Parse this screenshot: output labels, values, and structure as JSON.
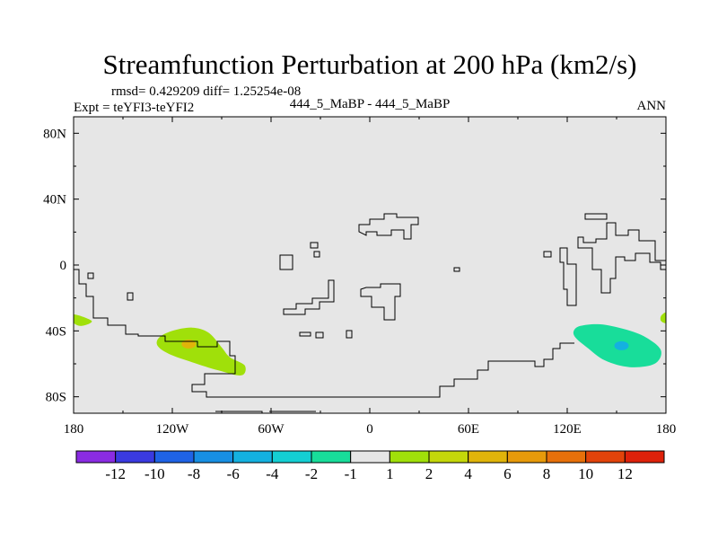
{
  "chart_data": {
    "type": "heatmap",
    "title": "Streamfunction Perturbation at 200 hPa (km2/s)",
    "stats_line": "rmsd= 0.429209 diff= 1.25254e-08",
    "expt_label": "Expt = teYFI3-teYFI2",
    "center_label": "444_5_MaBP - 444_5_MaBP",
    "season_label": "ANN",
    "xlim": [
      -180,
      180
    ],
    "ylim": [
      -90,
      90
    ],
    "x_ticks": [
      {
        "value": -180,
        "label": "180"
      },
      {
        "value": -120,
        "label": "120W"
      },
      {
        "value": -60,
        "label": "60W"
      },
      {
        "value": 0,
        "label": "0"
      },
      {
        "value": 60,
        "label": "60E"
      },
      {
        "value": 120,
        "label": "120E"
      },
      {
        "value": 180,
        "label": "180"
      }
    ],
    "y_ticks": [
      {
        "value": 80,
        "label": "80N"
      },
      {
        "value": 40,
        "label": "40N"
      },
      {
        "value": 0,
        "label": "0"
      },
      {
        "value": -40,
        "label": "40S"
      },
      {
        "value": -80,
        "label": "80S"
      }
    ],
    "colorbar": {
      "colors": [
        "#8a2be2",
        "#3a3ae0",
        "#1f63e6",
        "#178fe3",
        "#14b1e0",
        "#14cfd3",
        "#18dd9a",
        "#e6e6e6",
        "#a0e00a",
        "#c4d70a",
        "#e0b40a",
        "#e79a0a",
        "#e7700a",
        "#e2430a",
        "#de210a"
      ],
      "labels": [
        "-12",
        "-10",
        "-8",
        "-6",
        "-4",
        "-2",
        "-1",
        "1",
        "2",
        "4",
        "6",
        "8",
        "10",
        "12"
      ]
    },
    "features": [
      {
        "name": "positive anomaly south pacific",
        "value_range": [
          1,
          4
        ],
        "color": "#a0e00a",
        "outline": [
          [
            -128,
            -44
          ],
          [
            -120,
            -40
          ],
          [
            -108,
            -38
          ],
          [
            -98,
            -41
          ],
          [
            -90,
            -50
          ],
          [
            -85,
            -56
          ],
          [
            -76,
            -61
          ],
          [
            -78,
            -67
          ],
          [
            -92,
            -64
          ],
          [
            -108,
            -59
          ],
          [
            -122,
            -54
          ],
          [
            -129,
            -49
          ]
        ],
        "core": {
          "lon": -110,
          "lat": -48,
          "color": "#e0b40a"
        }
      },
      {
        "name": "positive anomaly sliver west",
        "value_range": [
          1,
          2
        ],
        "color": "#a0e00a",
        "outline": [
          [
            -180,
            -30
          ],
          [
            -169,
            -34
          ],
          [
            -175,
            -37
          ],
          [
            -180,
            -35
          ]
        ]
      },
      {
        "name": "positive anomaly sliver east",
        "value_range": [
          1,
          2
        ],
        "color": "#a0e00a",
        "outline": [
          [
            177,
            -31
          ],
          [
            180,
            -29
          ],
          [
            180,
            -35
          ],
          [
            177,
            -34
          ]
        ]
      },
      {
        "name": "negative anomaly south of australia",
        "value_range": [
          -2,
          -1
        ],
        "color": "#18dd9a",
        "outline": [
          [
            124,
            -40
          ],
          [
            128,
            -37
          ],
          [
            140,
            -36
          ],
          [
            155,
            -39
          ],
          [
            168,
            -44
          ],
          [
            177,
            -52
          ],
          [
            173,
            -60
          ],
          [
            158,
            -62
          ],
          [
            143,
            -58
          ],
          [
            132,
            -50
          ],
          [
            125,
            -44
          ]
        ],
        "core": {
          "lon": 153,
          "lat": -49,
          "color": "#14b1e0"
        }
      }
    ]
  }
}
